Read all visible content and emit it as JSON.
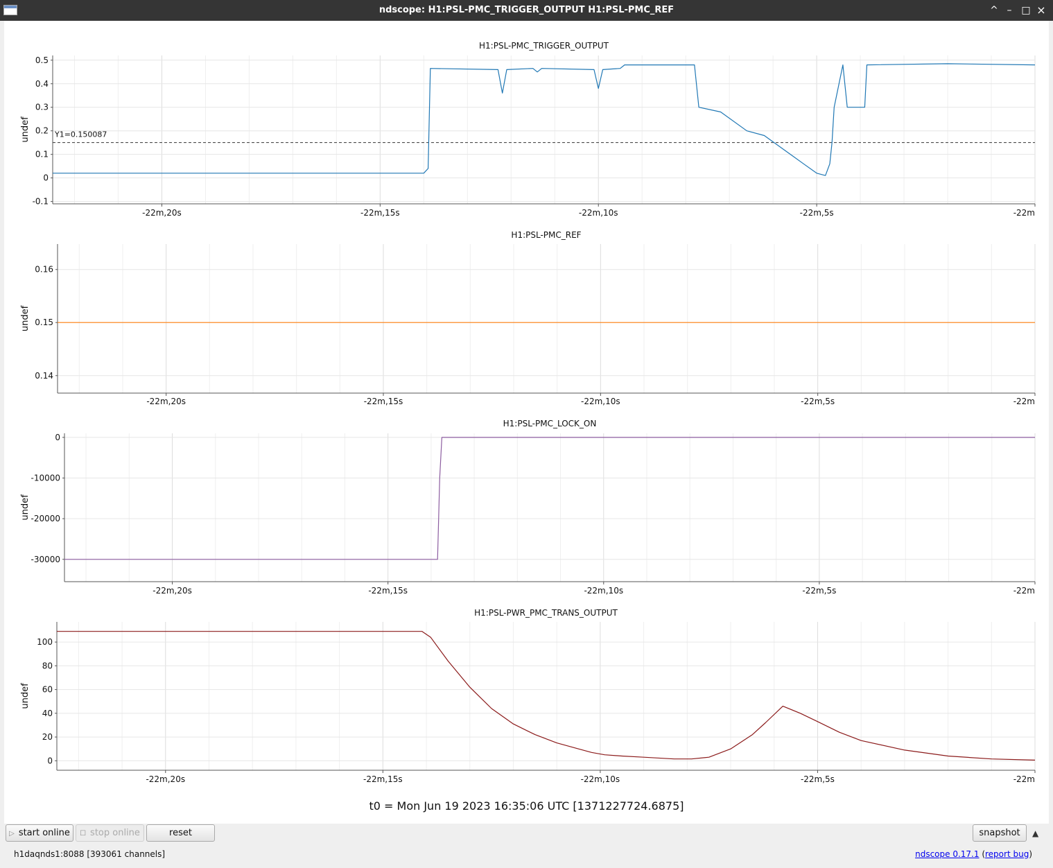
{
  "window": {
    "title": "ndscope: H1:PSL-PMC_TRIGGER_OUTPUT H1:PSL-PMC_REF",
    "controls": [
      "^",
      "–",
      "□",
      "×"
    ]
  },
  "x_ticks": [
    "-22m,20s",
    "-22m,15s",
    "-22m,10s",
    "-22m,5s",
    "-22m"
  ],
  "plots": [
    {
      "title": "H1:PSL-PMC_TRIGGER_OUTPUT",
      "ylabel": "undef",
      "yticks": [
        "0.5",
        "0.4",
        "0.3",
        "0.2",
        "0.1",
        "0",
        "-0.1"
      ],
      "cursor_label": "Y1=0.150087"
    },
    {
      "title": "H1:PSL-PMC_REF",
      "ylabel": "undef",
      "yticks": [
        "0.16",
        "0.15",
        "0.14"
      ]
    },
    {
      "title": "H1:PSL-PMC_LOCK_ON",
      "ylabel": "undef",
      "yticks": [
        "0",
        "-10000",
        "-20000",
        "-30000"
      ]
    },
    {
      "title": "H1:PSL-PWR_PMC_TRANS_OUTPUT",
      "ylabel": "undef",
      "yticks": [
        "100",
        "80",
        "60",
        "40",
        "20",
        "0"
      ]
    }
  ],
  "chart_data": [
    {
      "type": "line",
      "title": "H1:PSL-PMC_TRIGGER_OUTPUT",
      "xlabel": "",
      "ylabel": "undef",
      "ylim": [
        -0.11,
        0.52
      ],
      "color": "#1f77b4",
      "grid": true,
      "cursor": {
        "axis": "y",
        "value": 0.150087
      },
      "series": [
        {
          "x": [
            -22.5,
            -14.0,
            -13.9,
            -13.85,
            -12.3,
            -12.2,
            -12.1,
            -11.5,
            -11.4,
            -11.3,
            -10.1,
            -10.0,
            -9.9,
            -9.5,
            -9.4,
            -7.8,
            -7.7,
            -7.2,
            -6.6,
            -6.2,
            -5.3,
            -5.0,
            -4.8,
            -4.7,
            -4.65,
            -4.6,
            -4.4,
            -4.3,
            -3.9,
            -3.85,
            -2.0,
            0
          ],
          "y": [
            0.02,
            0.02,
            0.04,
            0.465,
            0.46,
            0.36,
            0.46,
            0.465,
            0.45,
            0.465,
            0.46,
            0.38,
            0.46,
            0.465,
            0.48,
            0.48,
            0.3,
            0.28,
            0.2,
            0.18,
            0.06,
            0.02,
            0.01,
            0.06,
            0.15,
            0.3,
            0.48,
            0.3,
            0.3,
            0.48,
            0.485,
            0.48
          ]
        }
      ]
    },
    {
      "type": "line",
      "title": "H1:PSL-PMC_REF",
      "xlabel": "",
      "ylabel": "undef",
      "ylim": [
        0.1367,
        0.1648
      ],
      "color": "#ff7f0e",
      "grid": true,
      "series": [
        {
          "x": [
            -22.5,
            0
          ],
          "y": [
            0.15,
            0.15
          ]
        }
      ]
    },
    {
      "type": "line",
      "title": "H1:PSL-PMC_LOCK_ON",
      "xlabel": "",
      "ylabel": "undef",
      "ylim": [
        -35500,
        1000
      ],
      "color": "#8c5da0",
      "grid": true,
      "series": [
        {
          "x": [
            -22.5,
            -13.85,
            -13.8,
            -13.75,
            0
          ],
          "y": [
            -30000,
            -30000,
            -10000,
            0,
            0
          ]
        }
      ]
    },
    {
      "type": "line",
      "title": "H1:PSL-PWR_PMC_TRANS_OUTPUT",
      "xlabel": "",
      "ylabel": "undef",
      "ylim": [
        -8,
        117
      ],
      "color": "#8b1a1a",
      "grid": true,
      "series": [
        {
          "x": [
            -22.5,
            -14.1,
            -13.9,
            -13.5,
            -13.0,
            -12.5,
            -12.0,
            -11.5,
            -11.0,
            -10.5,
            -10.2,
            -9.9,
            -9.5,
            -9.0,
            -8.3,
            -7.9,
            -7.5,
            -7.0,
            -6.5,
            -6.2,
            -5.8,
            -5.4,
            -5.0,
            -4.5,
            -4.0,
            -3.0,
            -2.0,
            -1.0,
            0
          ],
          "y": [
            109,
            109,
            104,
            84,
            62,
            44,
            31,
            22,
            15,
            10,
            7,
            5,
            4,
            3,
            1.5,
            1.5,
            3,
            10,
            22,
            32,
            46,
            40,
            33,
            24,
            17,
            9,
            4,
            1.5,
            0.5
          ]
        }
      ]
    }
  ],
  "t0": "t0 = Mon Jun 19 2023 16:35:06 UTC [1371227724.6875]",
  "toolbar": {
    "start_online": "start online",
    "stop_online": "stop online",
    "reset": "reset",
    "snapshot": "snapshot",
    "menu_arrow": "▲"
  },
  "status": {
    "server": "h1daqnds1:8088  [393061 channels]",
    "version_link": "ndscope 0.17.1",
    "paren_open": " (",
    "report_bug": "report bug",
    "paren_close": ")"
  }
}
